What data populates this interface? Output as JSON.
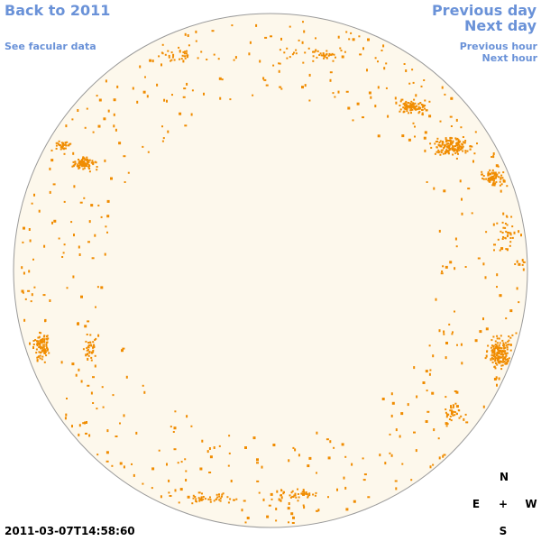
{
  "nav": {
    "back": "Back to 2011",
    "facular": "See facular data",
    "prev_day": "Previous day",
    "next_day": "Next day",
    "prev_hour": "Previous hour",
    "next_hour": "Next hour"
  },
  "timestamp": "2011-03-07T14:58:60",
  "compass": {
    "n": "N",
    "e": "E",
    "center": "+",
    "w": "W",
    "s": "S"
  },
  "colors": {
    "link": "#6a92d8",
    "disk_fill": "#fdf8ec",
    "disk_outline": "#9a9a9a",
    "spot": "#f08c00"
  }
}
